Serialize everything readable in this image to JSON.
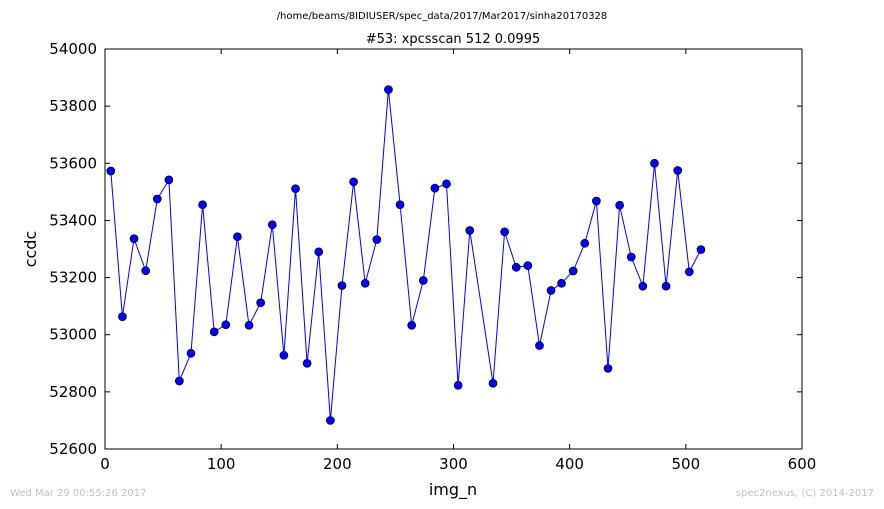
{
  "page": {
    "footer_left": "Wed Mar 29 00:55:26 2017",
    "footer_right": "spec2nexus, (C) 2014-2017"
  },
  "chart_data": {
    "type": "line",
    "supertitle": "/home/beams/8IDIUSER/spec_data/2017/Mar2017/sinha20170328",
    "title": "#53: xpcsscan 512 0.0995",
    "xlabel": "img_n",
    "ylabel": "ccdc",
    "xlim": [
      0,
      600
    ],
    "ylim": [
      52600,
      54000
    ],
    "xticks": [
      0,
      100,
      200,
      300,
      400,
      500,
      600
    ],
    "yticks": [
      52600,
      52800,
      53000,
      53200,
      53400,
      53600,
      53800,
      54000
    ],
    "grid": false,
    "line_color": "#0000ff",
    "marker_color": "#0000ff",
    "series": [
      {
        "x": [
          5,
          15,
          25,
          35,
          45,
          55,
          64,
          74,
          84,
          94,
          104,
          114,
          124,
          134,
          144,
          154,
          164,
          174,
          184,
          194,
          204,
          214,
          224,
          234,
          244,
          254,
          264,
          274,
          284,
          294,
          304,
          314,
          334,
          344,
          354,
          364,
          374,
          384,
          393,
          403,
          413,
          423,
          433,
          443,
          453,
          463,
          473,
          483,
          493,
          503,
          513
        ],
        "y": [
          53573,
          53063,
          53336,
          53224,
          53475,
          53542,
          52838,
          52935,
          53455,
          53010,
          53035,
          53343,
          53033,
          53112,
          53385,
          52928,
          53511,
          52900,
          53290,
          52700,
          53172,
          53535,
          53180,
          53333,
          53858,
          53455,
          53033,
          53190,
          53513,
          53528,
          52823,
          53365,
          52830,
          53360,
          53236,
          53242,
          52962,
          53155,
          53180,
          53223,
          53320,
          53468,
          52882,
          53453,
          53272,
          53170,
          53600,
          53170,
          53575,
          53220,
          53298
        ]
      }
    ]
  }
}
